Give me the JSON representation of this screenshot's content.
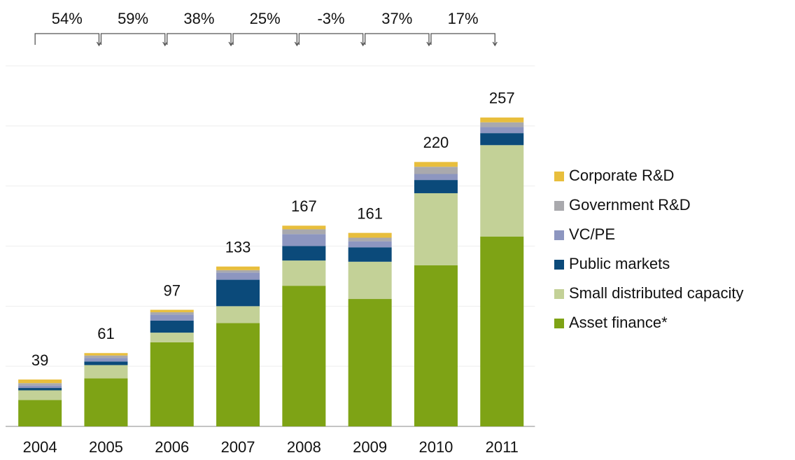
{
  "chart_data": {
    "type": "stacked_bar",
    "categories": [
      "2004",
      "2005",
      "2006",
      "2007",
      "2008",
      "2009",
      "2010",
      "2011"
    ],
    "series": [
      {
        "name": "Asset finance*",
        "color": "#7ea315",
        "values": [
          22,
          40,
          70,
          86,
          117,
          106,
          134,
          158
        ]
      },
      {
        "name": "Small distributed capacity",
        "color": "#c3d197",
        "values": [
          8,
          11,
          8,
          14,
          21,
          31,
          60,
          76
        ]
      },
      {
        "name": "Public markets",
        "color": "#0b4a7a",
        "values": [
          2,
          3,
          10,
          22,
          12,
          12,
          11,
          10
        ]
      },
      {
        "name": "VC/PE",
        "color": "#8d96c0",
        "values": [
          2,
          3,
          5,
          6,
          10,
          5,
          5,
          5
        ]
      },
      {
        "name": "Government R&D",
        "color": "#a9a9ad",
        "values": [
          2,
          2,
          2,
          2,
          4,
          3,
          6,
          4
        ]
      },
      {
        "name": "Corporate R&D",
        "color": "#e8be3c",
        "values": [
          3,
          2,
          2,
          3,
          3,
          4,
          4,
          4
        ]
      }
    ],
    "totals": [
      39,
      61,
      97,
      133,
      167,
      161,
      220,
      257
    ],
    "growth": {
      "values": [
        54,
        59,
        38,
        25,
        -3,
        37,
        17
      ],
      "value_labels": [
        "54%",
        "59%",
        "38%",
        "25%",
        "-3%",
        "37%",
        "17%"
      ]
    },
    "ylim": [
      0,
      300
    ],
    "yticks": [
      0,
      50,
      100,
      150,
      200,
      250,
      300
    ],
    "grid": true,
    "legend": "right"
  }
}
